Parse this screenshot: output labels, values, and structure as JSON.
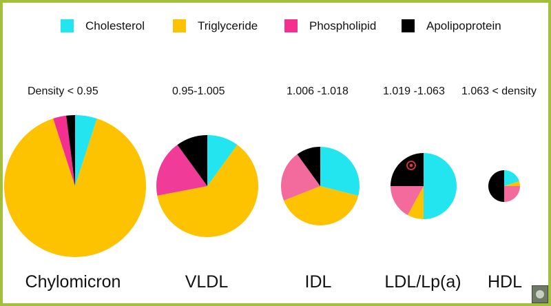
{
  "chart_data": {
    "type": "pie",
    "legend": {
      "placement": "top",
      "entries": [
        {
          "name": "Cholesterol",
          "color": "#22e5f0"
        },
        {
          "name": "Triglyceride",
          "color": "#fdc200"
        },
        {
          "name": "Phospholipid",
          "color": "#f42f8f"
        },
        {
          "name": "Apolipoprotein",
          "color": "#000000"
        }
      ]
    },
    "charts": [
      {
        "name": "Chylomicron",
        "density": "Density < 0.95",
        "values": {
          "Cholesterol": 5,
          "Triglyceride": 90,
          "Phospholipid": 3,
          "Apolipoprotein": 2
        }
      },
      {
        "name": "VLDL",
        "density": "0.95-1.005",
        "values": {
          "Cholesterol": 10,
          "Triglyceride": 62,
          "Phospholipid": 18,
          "Apolipoprotein": 10
        }
      },
      {
        "name": "IDL",
        "density": "1.006 -1.018",
        "values": {
          "Cholesterol": 29,
          "Triglyceride": 40,
          "Phospholipid": 21,
          "Apolipoprotein": 10
        }
      },
      {
        "name": "LDL/Lp(a)",
        "density": "1.019 -1.063",
        "values": {
          "Cholesterol": 50,
          "Triglyceride": 8,
          "Phospholipid": 17,
          "Apolipoprotein": 25
        }
      },
      {
        "name": "HDL",
        "density": "1.063 < density",
        "values": {
          "Cholesterol": 20,
          "Triglyceride": 5,
          "Phospholipid": 25,
          "Apolipoprotein": 50
        }
      }
    ],
    "slice_colors": {
      "VLDL": {
        "Phospholipid": "#f03c98"
      },
      "IDL": {
        "Phospholipid": "#f36b9c"
      },
      "LDL/Lp(a)": {
        "Phospholipid": "#f36b9c"
      },
      "HDL": {
        "Phospholipid": "#f36b9c"
      }
    },
    "annotation": {
      "chart": "LDL/Lp(a)",
      "marker": "target-icon",
      "color": "#d83a3a"
    }
  }
}
